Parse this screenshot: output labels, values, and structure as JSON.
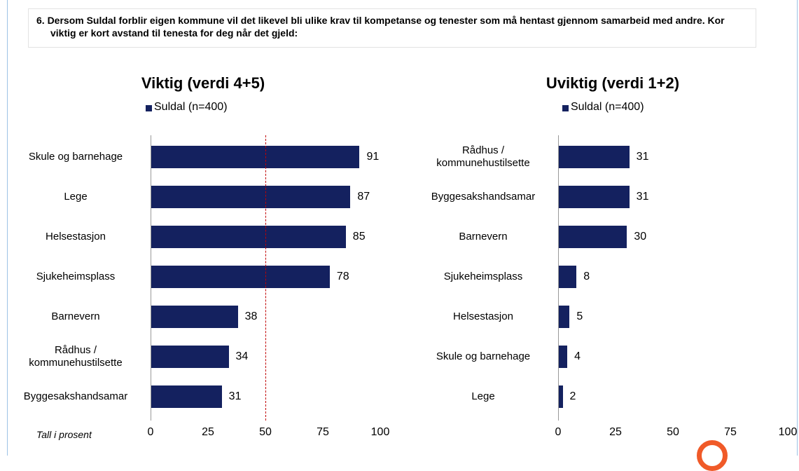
{
  "header": {
    "question": "6. Dersom Suldal forblir eigen kommune  vil det likevel bli ulike krav til kompetanse og tenester som må hentast gjennom samarbeid med andre. Kor viktig er kort avstand til tenesta for deg når det gjeld:"
  },
  "chart_data": [
    {
      "type": "bar",
      "orientation": "horizontal",
      "title": "Viktig (verdi 4+5)",
      "categories": [
        "Skule og barnehage",
        "Lege",
        "Helsestasjon",
        "Sjukeheimsplass",
        "Barnevern",
        "Rådhus / kommunehustilsette",
        "Byggesakshandsamar"
      ],
      "series": [
        {
          "name": "Suldal (n=400)",
          "color": "#14215f",
          "values": [
            91,
            87,
            85,
            78,
            38,
            34,
            31
          ]
        }
      ],
      "xlim": [
        0,
        100
      ],
      "xticks": [
        0,
        25,
        50,
        75,
        100
      ],
      "reference_line": {
        "value": 50,
        "color": "#c00000"
      },
      "annotation": "Tall i prosent"
    },
    {
      "type": "bar",
      "orientation": "horizontal",
      "title": "Uviktig (verdi 1+2)",
      "categories": [
        "Rådhus / kommunehustilsette",
        "Byggesakshandsamar",
        "Barnevern",
        "Sjukeheimsplass",
        "Helsestasjon",
        "Skule og barnehage",
        "Lege"
      ],
      "series": [
        {
          "name": "Suldal (n=400)",
          "color": "#14215f",
          "values": [
            31,
            31,
            30,
            8,
            5,
            4,
            2
          ]
        }
      ],
      "xlim": [
        0,
        100
      ],
      "xticks": [
        0,
        25,
        50,
        75,
        100
      ]
    }
  ]
}
